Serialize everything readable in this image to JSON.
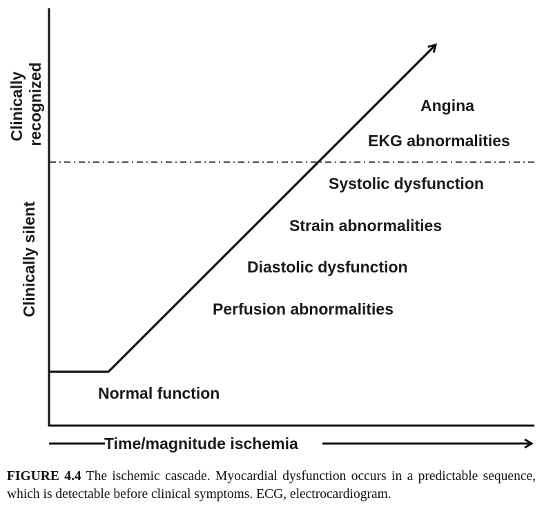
{
  "diagram": {
    "y_zone_upper": [
      "Clinically",
      "recognized"
    ],
    "y_zone_lower": "Clinically silent",
    "x_axis_label": "Time/magnitude ischemia",
    "stages": [
      "Normal function",
      "Perfusion abnormalities",
      "Diastolic dysfunction",
      "Strain abnormalities",
      "Systolic dysfunction",
      "EKG abnormalities",
      "Angina"
    ],
    "colors": {
      "ink": "#111111"
    }
  },
  "caption": {
    "label": "FIGURE 4.4",
    "text": "The ischemic cascade. Myocardial dysfunction occurs in a predictable sequence, which is detectable before clinical symptoms. ECG, electrocardiogram."
  }
}
